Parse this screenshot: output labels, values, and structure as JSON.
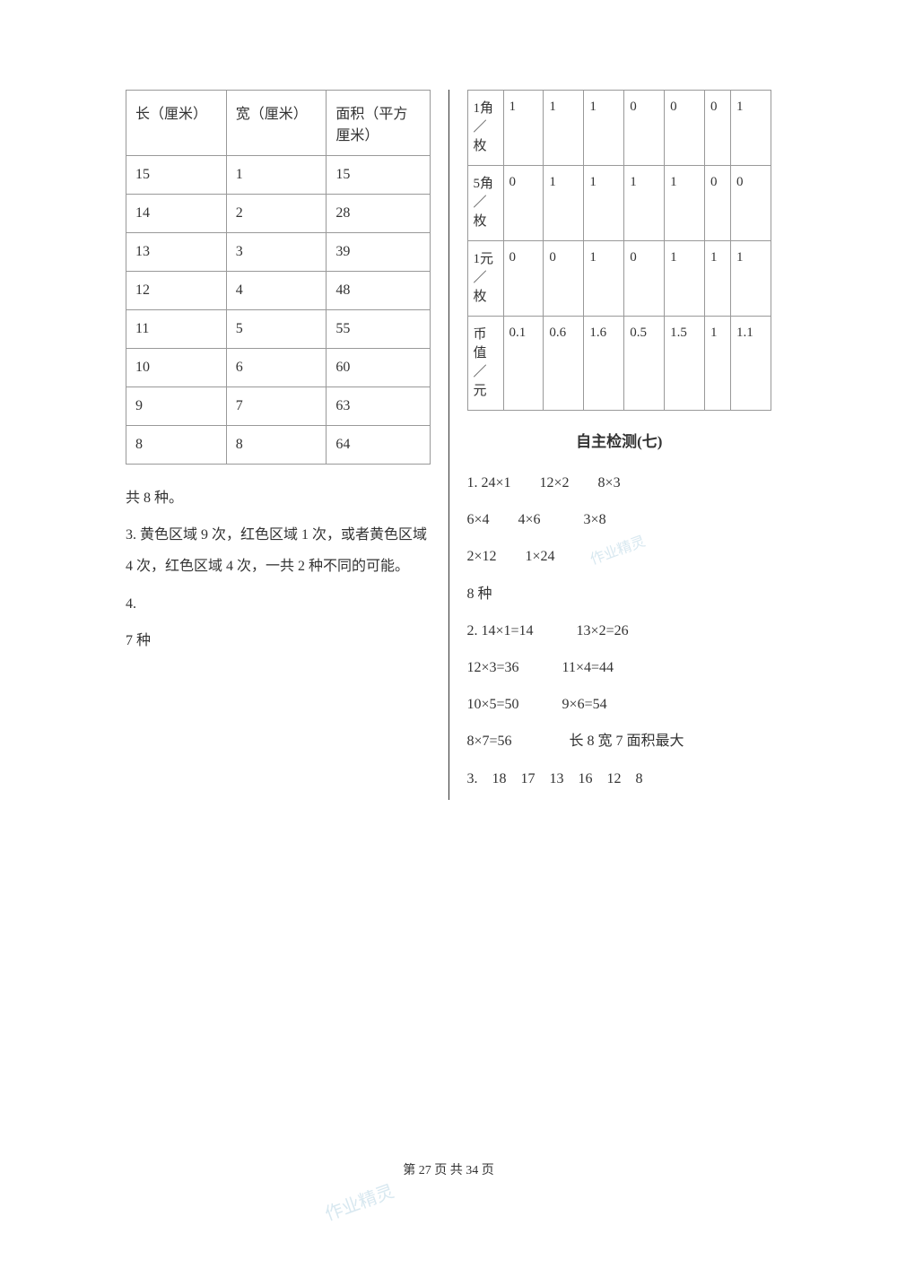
{
  "left": {
    "table": {
      "headers": [
        "长（厘米）",
        "宽（厘米）",
        "面积（平方厘米）"
      ],
      "rows": [
        [
          "15",
          "1",
          "15"
        ],
        [
          "14",
          "2",
          "28"
        ],
        [
          "13",
          "3",
          "39"
        ],
        [
          "12",
          "4",
          "48"
        ],
        [
          "11",
          "5",
          "55"
        ],
        [
          "10",
          "6",
          "60"
        ],
        [
          "9",
          "7",
          "63"
        ],
        [
          "8",
          "8",
          "64"
        ]
      ]
    },
    "p1": "共 8 种。",
    "p2": "3. 黄色区域 9 次，红色区域 1 次，或者黄色区域 4 次，红色区域 4 次，一共 2 种不同的可能。",
    "p3": "4.",
    "p4": "7 种"
  },
  "right": {
    "table": {
      "rowHeaders": [
        "1角／枚",
        "5角／枚",
        "1元／枚",
        "币值／元"
      ],
      "rows": [
        [
          "1",
          "1",
          "1",
          "0",
          "0",
          "0",
          "1"
        ],
        [
          "0",
          "1",
          "1",
          "1",
          "1",
          "0",
          "0"
        ],
        [
          "0",
          "0",
          "1",
          "0",
          "1",
          "1",
          "1"
        ],
        [
          "0.1",
          "0.6",
          "1.6",
          "0.5",
          "1.5",
          "1",
          "1.1"
        ]
      ]
    },
    "title": "自主检测(七)",
    "lines": [
      "1. 24×1　　12×2　　8×3",
      "6×4　　4×6　　　3×8",
      "2×12　　1×24",
      "8 种",
      "2. 14×1=14　　　13×2=26",
      "12×3=36　　　11×4=44",
      "10×5=50　　　9×6=54",
      "8×7=56　　　　长 8 宽 7 面积最大",
      "3.　18　17　13　16　12　8"
    ]
  },
  "footer": "第 27 页 共 34 页",
  "watermark": "作业精灵"
}
